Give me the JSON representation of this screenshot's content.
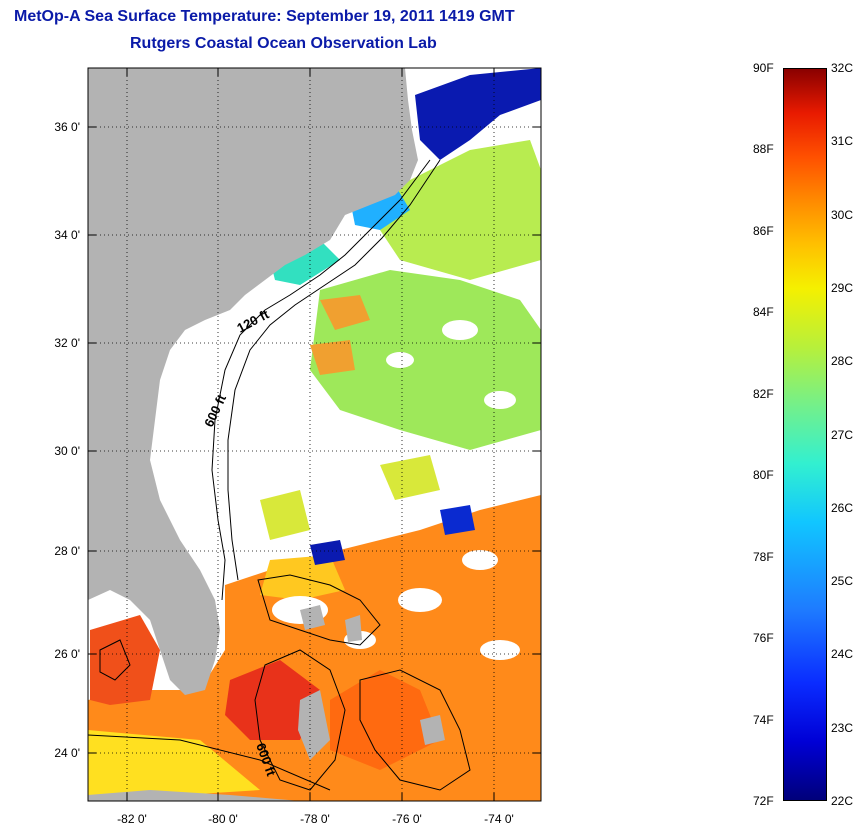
{
  "header": {
    "title": "MetOp-A Sea Surface Temperature:  September 19, 2011 1419 GMT",
    "subtitle": "Rutgers Coastal Ocean Observation Lab"
  },
  "map": {
    "lat_labels": [
      "36 0'",
      "34 0'",
      "32 0'",
      "30 0'",
      "28 0'",
      "26 0'",
      "24 0'"
    ],
    "lon_labels": [
      "-82 0'",
      "-80 0'",
      "-78 0'",
      "-76 0'",
      "-74 0'"
    ],
    "contour_labels": [
      "120 ft",
      "600 ft",
      "600 ft"
    ],
    "colors": {
      "land": "#b3b3b3",
      "cloud_mask": "#ffffff",
      "warm": "#ff8a1a",
      "hot": "#e8321a",
      "mild": "#9ee85a",
      "cool": "#20b0ff",
      "cold": "#0a1ab0",
      "title": "#0a1aa8"
    }
  },
  "colorbar": {
    "f_labels": [
      "90F",
      "88F",
      "86F",
      "84F",
      "82F",
      "80F",
      "78F",
      "76F",
      "74F",
      "72F"
    ],
    "c_labels": [
      "32C",
      "31C",
      "30C",
      "29C",
      "28C",
      "27C",
      "26C",
      "25C",
      "24C",
      "23C",
      "22C"
    ],
    "min_c": 22,
    "max_c": 32
  }
}
